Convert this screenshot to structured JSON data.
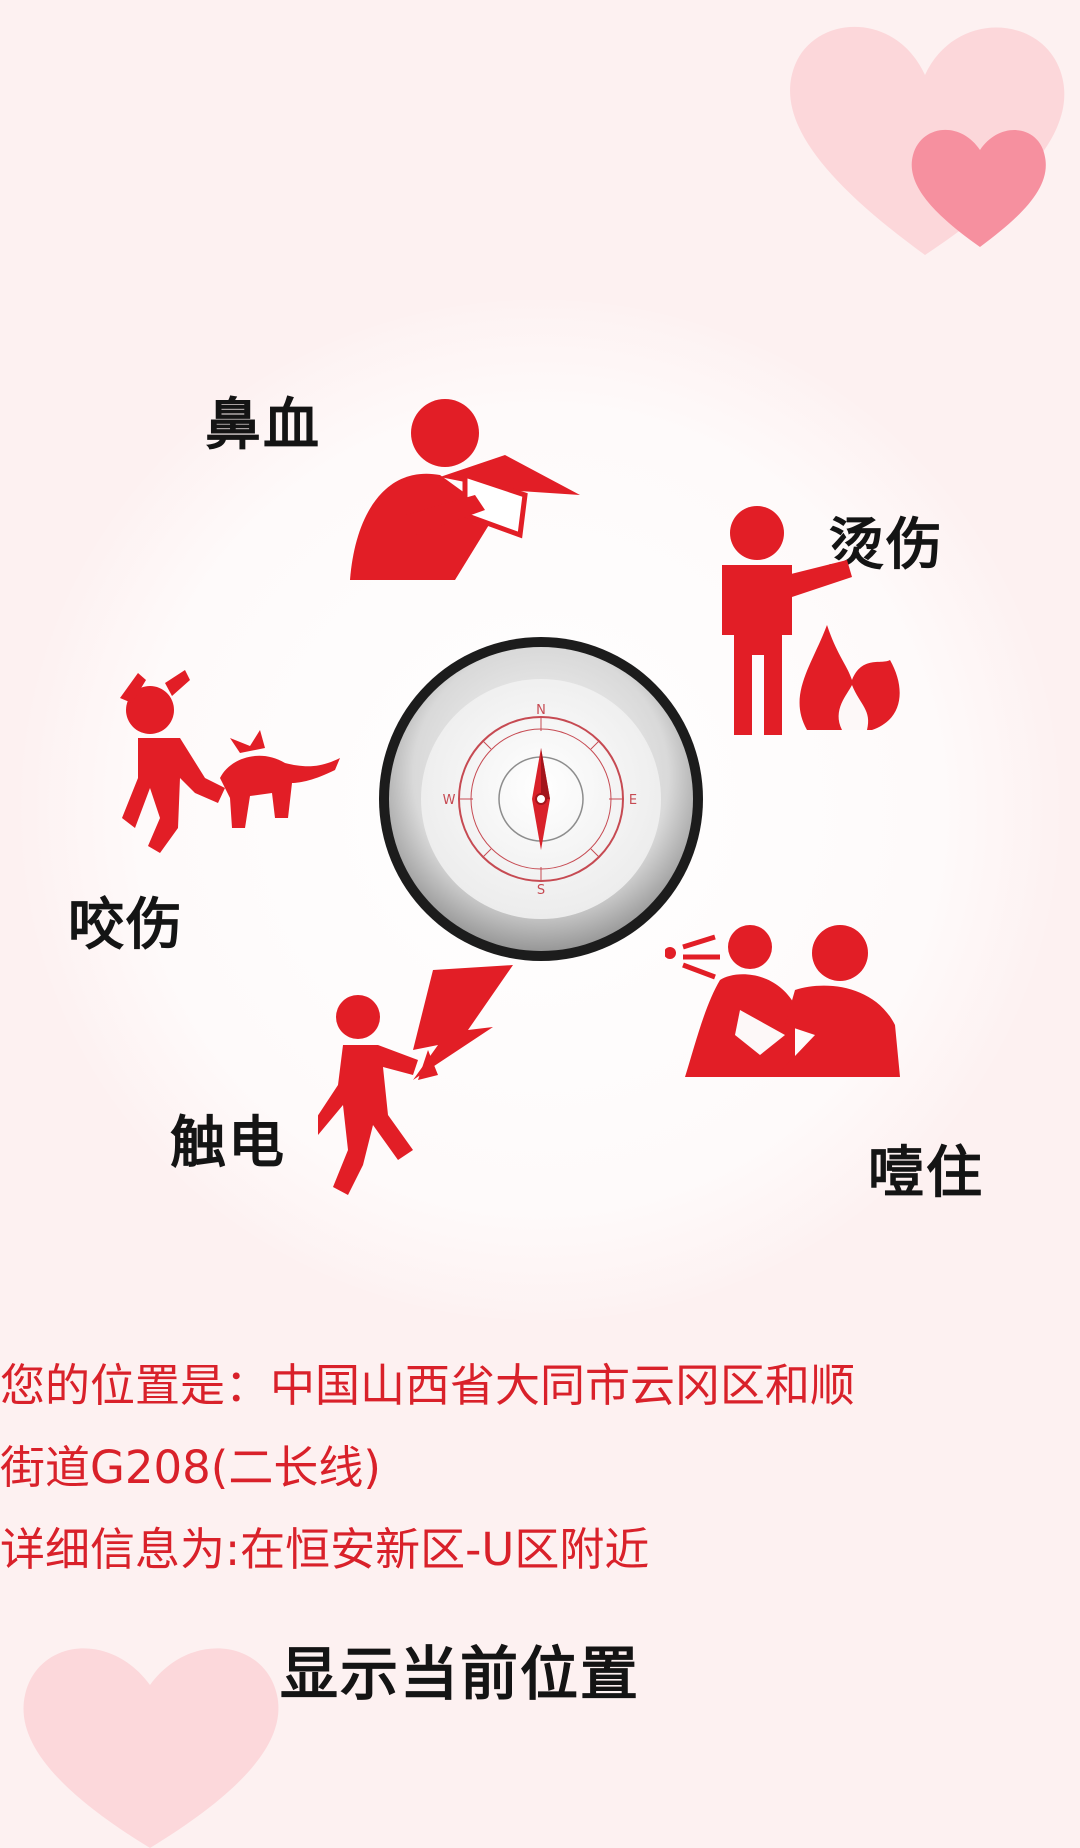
{
  "categories": {
    "nosebleed": "鼻血",
    "burn": "烫伤",
    "bite": "咬伤",
    "electric_shock": "触电",
    "choking": "噎住"
  },
  "location": {
    "line1": " 您的位置是：中国山西省大同市云冈区和顺",
    "line2": "街道G208(二长线)",
    "line3": " 详细信息为:在恒安新区-U区附近"
  },
  "action": {
    "show_location": "显示当前位置"
  },
  "compass": {
    "north": "N",
    "south": "S",
    "east": "E",
    "west": "W"
  },
  "colors": {
    "accent": "#e21e26",
    "text": "#141414",
    "background": "#fdf1f1"
  },
  "icons": {
    "nosebleed": "nosebleed-person-icon",
    "burn": "fire-burn-icon",
    "bite": "dog-bite-icon",
    "electric_shock": "electric-shock-icon",
    "choking": "choking-heimlich-icon",
    "compass": "compass-icon"
  }
}
